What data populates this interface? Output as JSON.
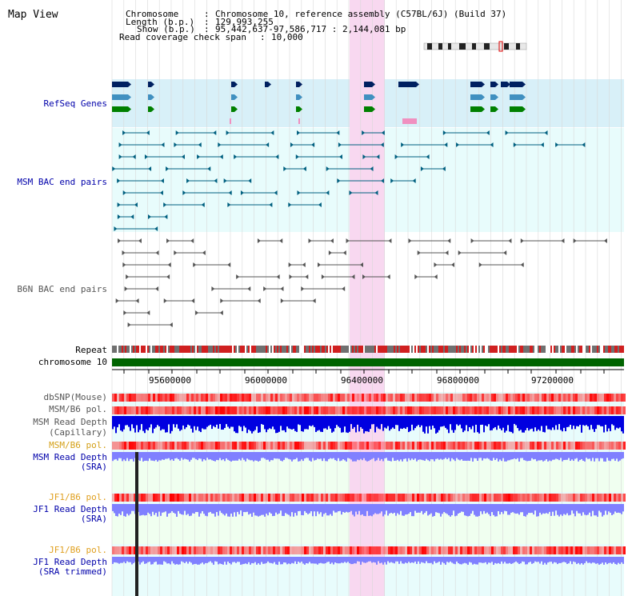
{
  "page": {
    "title": "Map View"
  },
  "header": {
    "chromosome_label": "Chromosome",
    "chromosome_value": "Chromosome 10, reference assembly (C57BL/6J) (Build 37)",
    "length_label": "Length (b.p.)",
    "length_value": "129,993,255",
    "show_label": "Show (b.p.)",
    "show_value": "95,442,637-97,586,717 : 2,144,081 bp",
    "coverage_label": "Read coverage check span",
    "coverage_value": "10,000"
  },
  "tracks": {
    "refseq": {
      "label": "RefSeq Genes",
      "color": "#0000aa"
    },
    "msm_bac": {
      "label": "MSM BAC end pairs",
      "color": "#0000aa"
    },
    "b6n_bac": {
      "label": "B6N BAC end pairs",
      "color": "#555555"
    },
    "repeat": {
      "label": "Repeat",
      "color": "#000000"
    },
    "chromosome": {
      "label": "chromosome 10",
      "color": "#000000"
    },
    "dbsnp": {
      "label": "dbSNP(Mouse)",
      "color": "#555555"
    },
    "msm_b6_pol_1": {
      "label": "MSM/B6 pol.",
      "color": "#555555"
    },
    "msm_depth_cap": {
      "label_line1": "MSM Read Depth",
      "label_line2": "(Capillary)",
      "color": "#555555"
    },
    "msm_b6_pol_2": {
      "label": "MSM/B6 pol.",
      "color": "#d4a017"
    },
    "msm_depth_sra": {
      "label_line1": "MSM Read Depth",
      "label_line2": "(SRA)",
      "color": "#0000aa"
    },
    "jf1_b6_pol_1": {
      "label": "JF1/B6 pol.",
      "color": "#e0a020"
    },
    "jf1_depth_sra": {
      "label_line1": "JF1 Read Depth",
      "label_line2": "(SRA)",
      "color": "#0000aa"
    },
    "jf1_b6_pol_2": {
      "label": "JF1/B6 pol.",
      "color": "#e0a020"
    },
    "jf1_depth_trim": {
      "label_line1": "JF1 Read Depth",
      "label_line2": "(SRA trimmed)",
      "color": "#0000aa"
    }
  },
  "axis": {
    "ticks": [
      "95600000",
      "96000000",
      "96400000",
      "96800000",
      "97200000"
    ]
  },
  "colors": {
    "highlight": "#f8d8f0",
    "refseq_band": "#d8f0f8",
    "light_cyan": "#e8fcfc",
    "msm_pair": "#006080",
    "b6n_pair": "#555555",
    "chromosome_bar": "#006400",
    "depth_blue": "#0000e0",
    "depth_light": "#8080ff",
    "pol_red": "#ff4040"
  }
}
